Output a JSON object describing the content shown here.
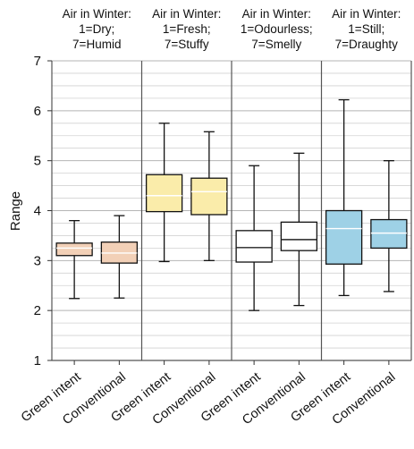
{
  "chart_data": {
    "type": "box",
    "ylabel": "Range",
    "ylim": [
      1,
      7
    ],
    "y_ticks": [
      "1",
      "2",
      "3",
      "4",
      "5",
      "6",
      "7"
    ],
    "grid": "horizontal",
    "panels": [
      {
        "title_lines": [
          "Air in Winter:",
          "1=Dry;",
          "7=Humid"
        ],
        "color": "#f2d0b7",
        "categories": [
          "Green intent",
          "Conventional"
        ],
        "boxes": [
          {
            "min": 2.24,
            "q1": 3.1,
            "median": 3.25,
            "q3": 3.35,
            "max": 3.8
          },
          {
            "min": 2.25,
            "q1": 2.95,
            "median": 3.15,
            "q3": 3.37,
            "max": 3.9
          }
        ]
      },
      {
        "title_lines": [
          "Air in Winter:",
          "1=Fresh;",
          "7=Stuffy"
        ],
        "color": "#faecaa",
        "categories": [
          "Green intent",
          "Conventional"
        ],
        "boxes": [
          {
            "min": 2.98,
            "q1": 3.98,
            "median": 4.3,
            "q3": 4.72,
            "max": 5.75
          },
          {
            "min": 3.0,
            "q1": 3.92,
            "median": 4.38,
            "q3": 4.65,
            "max": 5.58
          }
        ]
      },
      {
        "title_lines": [
          "Air in Winter:",
          "1=Odourless;",
          "7=Smelly"
        ],
        "color": "#ffffff",
        "categories": [
          "Green intent",
          "Conventional"
        ],
        "boxes": [
          {
            "min": 2.0,
            "q1": 2.97,
            "median": 3.26,
            "q3": 3.6,
            "max": 4.9
          },
          {
            "min": 2.1,
            "q1": 3.2,
            "median": 3.42,
            "q3": 3.77,
            "max": 5.15
          }
        ]
      },
      {
        "title_lines": [
          "Air in Winter:",
          "1=Still;",
          "7=Draughty"
        ],
        "color": "#9ed1e6",
        "categories": [
          "Green intent",
          "Conventional"
        ],
        "boxes": [
          {
            "min": 2.3,
            "q1": 2.93,
            "median": 3.64,
            "q3": 4.0,
            "max": 6.22
          },
          {
            "min": 2.38,
            "q1": 3.25,
            "median": 3.55,
            "q3": 3.82,
            "max": 5.0
          }
        ]
      }
    ]
  }
}
